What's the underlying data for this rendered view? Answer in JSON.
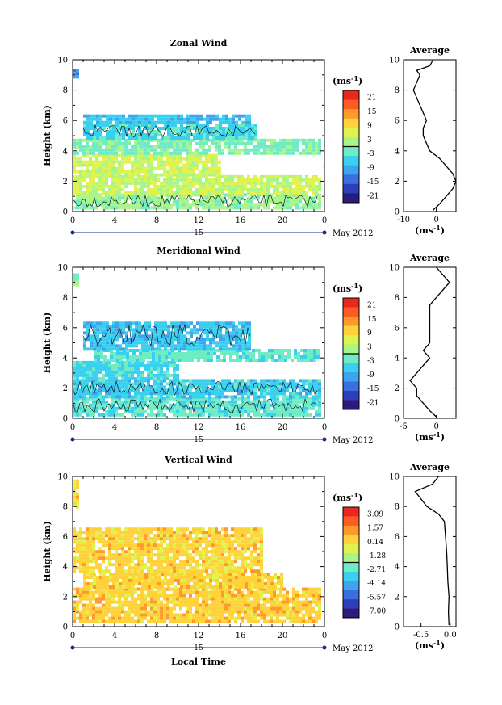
{
  "colors": {
    "scale": [
      "#2b1c78",
      "#2e3fbe",
      "#3a6fe0",
      "#3fa3ee",
      "#38d0ee",
      "#6fecc3",
      "#a8f58a",
      "#dff24e",
      "#ffd23a",
      "#ff9a2a",
      "#ff5a22",
      "#e82a1e"
    ],
    "axis": "#000000",
    "time_axis": "#1a2a8a"
  },
  "labels": {
    "ylabel": "Height (km)",
    "xlabel_bottom": "Local Time",
    "date_label": "May 2012",
    "day_label": "15",
    "units": "(ms",
    "units_sup": "-1",
    "units_close": ")",
    "average_title": "Average"
  },
  "chart_data": [
    {
      "type": "heatmap",
      "title": "Zonal Wind",
      "x_ticks": [
        "0",
        "4",
        "8",
        "12",
        "16",
        "20",
        "0"
      ],
      "y_ticks": [
        "0",
        "2",
        "4",
        "6",
        "8",
        "10"
      ],
      "xlim": [
        0,
        24
      ],
      "ylim": [
        0,
        10
      ],
      "colorbar": {
        "ticks": [
          "21",
          "15",
          "9",
          "3",
          "-3",
          "-9",
          "-15",
          "-21"
        ],
        "range": [
          -24,
          24
        ]
      },
      "bands": [
        {
          "y": [
            0.2,
            1.2
          ],
          "x": [
            0,
            23.5
          ],
          "value": 1,
          "zero_contour": true
        },
        {
          "y": [
            1.2,
            2.4
          ],
          "x": [
            0,
            23.5
          ],
          "value": 4
        },
        {
          "y": [
            2.4,
            3.8
          ],
          "x": [
            0,
            14
          ],
          "value": 5
        },
        {
          "y": [
            3.8,
            4.8
          ],
          "x": [
            0,
            23.5
          ],
          "value": -1
        },
        {
          "y": [
            4.8,
            5.8
          ],
          "x": [
            1,
            17.5
          ],
          "value": -5,
          "zero_contour": true
        },
        {
          "y": [
            5.8,
            6.4
          ],
          "x": [
            1,
            17
          ],
          "value": -7
        },
        {
          "y": [
            8.8,
            9.4
          ],
          "x": [
            0,
            0.5
          ],
          "value": -13
        }
      ],
      "profile": {
        "title": "Average",
        "xlim": [
          -10,
          6
        ],
        "x_ticks": [
          "-10",
          "0"
        ],
        "xlabel": "(ms",
        "y": [
          0.1,
          0.5,
          1,
          1.5,
          2,
          2.5,
          3,
          3.5,
          4,
          4.5,
          5,
          5.5,
          6,
          6.5,
          7,
          7.5,
          8,
          8.5,
          9,
          9.3,
          9.6,
          10
        ],
        "x": [
          -1,
          1,
          3,
          5,
          6,
          5,
          3,
          1,
          -2,
          -3,
          -4,
          -4,
          -3,
          -4,
          -5,
          -6,
          -7,
          -6,
          -5,
          -6,
          -2,
          -1
        ]
      }
    },
    {
      "type": "heatmap",
      "title": "Meridional Wind",
      "x_ticks": [
        "0",
        "4",
        "8",
        "12",
        "16",
        "20",
        "0"
      ],
      "y_ticks": [
        "0",
        "2",
        "4",
        "6",
        "8",
        "10"
      ],
      "xlim": [
        0,
        24
      ],
      "ylim": [
        0,
        10
      ],
      "colorbar": {
        "ticks": [
          "21",
          "15",
          "9",
          "3",
          "-3",
          "-9",
          "-15",
          "-21"
        ],
        "range": [
          -24,
          24
        ]
      },
      "bands": [
        {
          "y": [
            0.2,
            1.4
          ],
          "x": [
            0,
            23.5
          ],
          "value": -3,
          "zero_contour": true
        },
        {
          "y": [
            1.4,
            2.6
          ],
          "x": [
            0,
            23.5
          ],
          "value": -6,
          "zero_contour": true
        },
        {
          "y": [
            2.6,
            3.8
          ],
          "x": [
            0,
            10
          ],
          "value": -5
        },
        {
          "y": [
            3.8,
            4.6
          ],
          "x": [
            2,
            23.5
          ],
          "value": -3
        },
        {
          "y": [
            4.6,
            6.4
          ],
          "x": [
            1,
            17
          ],
          "value": -7,
          "zero_contour": true
        },
        {
          "y": [
            8.8,
            9.6
          ],
          "x": [
            0,
            0.5
          ],
          "value": 1
        }
      ],
      "profile": {
        "title": "Average",
        "xlim": [
          -5,
          3
        ],
        "x_ticks": [
          "-5",
          "0"
        ],
        "xlabel": "(ms",
        "y": [
          0.1,
          0.5,
          1,
          1.5,
          2,
          2.5,
          3,
          3.5,
          4,
          4.5,
          5,
          5.5,
          6,
          6.5,
          7,
          7.5,
          8,
          8.5,
          9,
          9.5,
          10
        ],
        "x": [
          0,
          -1,
          -2,
          -3,
          -3,
          -4,
          -3,
          -2,
          -1,
          -2,
          -1,
          -1,
          -1,
          -1,
          -1,
          -1,
          0,
          1,
          2,
          1,
          0
        ]
      }
    },
    {
      "type": "heatmap",
      "title": "Vertical Wind",
      "x_ticks": [
        "0",
        "4",
        "8",
        "12",
        "16",
        "20",
        "0"
      ],
      "y_ticks": [
        "0",
        "2",
        "4",
        "6",
        "8",
        "10"
      ],
      "xlim": [
        0,
        24
      ],
      "ylim": [
        0,
        10
      ],
      "colorbar": {
        "ticks": [
          "3.09",
          "1.57",
          "0.14",
          "-1.28",
          "-2.71",
          "-4.14",
          "-5.57",
          "-7.00"
        ],
        "range": [
          -7.7,
          3.8
        ]
      },
      "bands": [
        {
          "y": [
            0.3,
            2.6
          ],
          "x": [
            0,
            23.5
          ],
          "value": 0.5
        },
        {
          "y": [
            2.6,
            3.6
          ],
          "x": [
            1,
            20
          ],
          "value": 0.4
        },
        {
          "y": [
            3.6,
            6.6
          ],
          "x": [
            0,
            18
          ],
          "value": 0.4
        },
        {
          "y": [
            8.0,
            9.8
          ],
          "x": [
            0,
            0.5
          ],
          "value": 0.3
        }
      ],
      "profile": {
        "title": "Average",
        "xlim": [
          -0.8,
          0.1
        ],
        "x_ticks": [
          "-0.5",
          "0.0"
        ],
        "xlabel": "(ms",
        "y": [
          0.1,
          1,
          2,
          3,
          4,
          5,
          6,
          7,
          7.5,
          8,
          8.5,
          9,
          9.5,
          10
        ],
        "x": [
          -0.02,
          -0.03,
          -0.02,
          -0.04,
          -0.05,
          -0.06,
          -0.08,
          -0.1,
          -0.2,
          -0.4,
          -0.5,
          -0.6,
          -0.3,
          -0.2
        ]
      }
    }
  ]
}
